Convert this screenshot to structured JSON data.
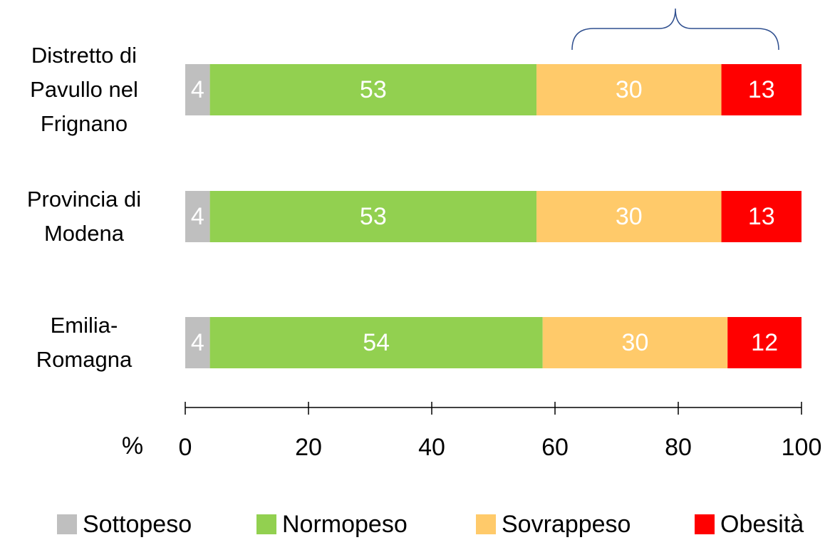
{
  "chart_data": {
    "type": "stacked_barh",
    "categories": [
      "Distretto di Pavullo nel Frignano",
      "Provincia di Modena",
      "Emilia-Romagna"
    ],
    "series": [
      {
        "name": "Sottopeso",
        "color": "#bfbfbf",
        "values": [
          4,
          4,
          4
        ]
      },
      {
        "name": "Normopeso",
        "color": "#92d050",
        "values": [
          53,
          53,
          54
        ]
      },
      {
        "name": "Sovrappeso",
        "color": "#ffca6a",
        "values": [
          30,
          30,
          30
        ]
      },
      {
        "name": "Obesità",
        "color": "#ff0000",
        "values": [
          13,
          13,
          12
        ]
      }
    ],
    "xlabel": "%",
    "xlim": [
      0,
      100
    ],
    "xticks": [
      0,
      20,
      40,
      60,
      80,
      100
    ],
    "legend": "bottom"
  }
}
